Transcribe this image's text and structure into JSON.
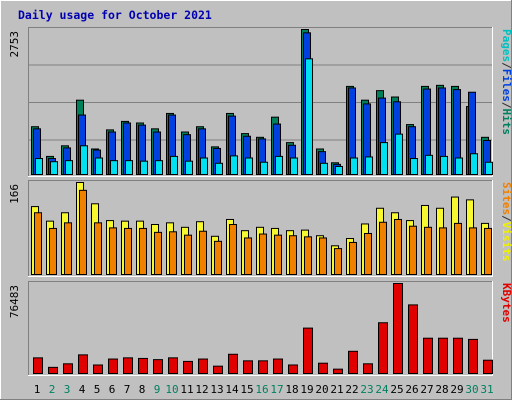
{
  "chart_data": {
    "type": "bar",
    "title": "Daily usage for October 2021",
    "categories": [
      "1",
      "2",
      "3",
      "4",
      "5",
      "6",
      "7",
      "8",
      "9",
      "10",
      "11",
      "12",
      "13",
      "14",
      "15",
      "16",
      "17",
      "18",
      "19",
      "20",
      "21",
      "22",
      "23",
      "24",
      "25",
      "26",
      "27",
      "28",
      "29",
      "30",
      "31"
    ],
    "weekend_days": [
      "2",
      "3",
      "9",
      "10",
      "16",
      "17",
      "23",
      "24",
      "30",
      "31"
    ],
    "panels": [
      {
        "name": "hits-files-pages",
        "ymax_label": "2753",
        "ymax": 2753,
        "legend": [
          "Pages",
          "/",
          "Files",
          "/",
          "Hits"
        ],
        "legend_colors": [
          "#00c0c0",
          "#303030",
          "#0040e0",
          "#303030",
          "#008060"
        ],
        "series": [
          {
            "name": "Hits",
            "color": "#00805a",
            "values": [
              920,
              360,
              560,
              1420,
              500,
              860,
              1020,
              990,
              880,
              1170,
              820,
              920,
              540,
              1170,
              790,
              720,
              1100,
              620,
              2753,
              500,
              240,
              1680,
              1420,
              1600,
              1480,
              960,
              1680,
              1700,
              1680,
              1300,
              720
            ]
          },
          {
            "name": "Files",
            "color": "#0040e0",
            "values": [
              880,
              320,
              520,
              1140,
              480,
              820,
              990,
              950,
              820,
              1140,
              770,
              880,
              510,
              1120,
              740,
              690,
              970,
              570,
              2690,
              450,
              210,
              1650,
              1350,
              1460,
              1390,
              920,
              1630,
              1650,
              1620,
              1570,
              660
            ]
          },
          {
            "name": "Pages",
            "color": "#00e0f0",
            "values": [
              320,
              260,
              280,
              560,
              330,
              280,
              280,
              270,
              280,
              360,
              270,
              330,
              230,
              370,
              330,
              250,
              360,
              330,
              2200,
              230,
              170,
              330,
              350,
              620,
              780,
              320,
              380,
              360,
              330,
              410,
              250
            ]
          }
        ]
      },
      {
        "name": "visits-sites",
        "ymax_label": "166",
        "ymax": 166,
        "legend": [
          "Sites",
          "/",
          "Visits"
        ],
        "legend_colors": [
          "#f08000",
          "#303030",
          "#f0f000"
        ],
        "series": [
          {
            "name": "Visits",
            "color": "#f8f830",
            "values": [
              123,
              97,
              112,
              166,
              128,
              98,
              97,
              97,
              91,
              94,
              86,
              96,
              70,
              100,
              80,
              86,
              84,
              80,
              81,
              71,
              53,
              66,
              92,
              120,
              112,
              98,
              125,
              120,
              140,
              135,
              93
            ]
          },
          {
            "name": "Sites",
            "color": "#f08000",
            "values": [
              112,
              84,
              94,
              152,
              94,
              85,
              84,
              84,
              77,
              78,
              72,
              79,
              61,
              91,
              67,
              74,
              72,
              71,
              69,
              67,
              48,
              59,
              75,
              95,
              100,
              88,
              86,
              85,
              93,
              85,
              84
            ]
          }
        ]
      },
      {
        "name": "kbytes",
        "ymax_label": "76483",
        "ymax": 76483,
        "legend": [
          "KBytes"
        ],
        "legend_colors": [
          "#e00000"
        ],
        "series": [
          {
            "name": "KBytes",
            "color": "#e00000",
            "values": [
              14000,
              6000,
              9000,
              16500,
              8000,
              13000,
              14000,
              13500,
              12500,
              14000,
              11000,
              13000,
              7000,
              17000,
              11500,
              11500,
              13000,
              8000,
              39000,
              9500,
              4500,
              19500,
              9000,
              43500,
              76483,
              58500,
              30500,
              30500,
              30500,
              29500,
              12000
            ]
          }
        ]
      }
    ]
  }
}
